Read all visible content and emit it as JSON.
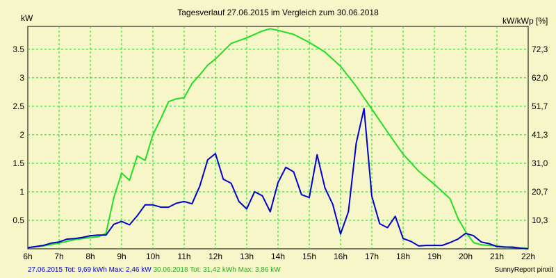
{
  "chart_data": {
    "type": "line",
    "title": "Tagesverlauf 27.06.2015 im Vergleich zum 30.06.2018",
    "ylabel_left": "kW",
    "ylabel_right": "kW/kWp [%]",
    "x_ticks": [
      "6h",
      "7h",
      "8h",
      "9h",
      "10h",
      "11h",
      "12h",
      "13h",
      "14h",
      "15h",
      "16h",
      "17h",
      "18h",
      "19h",
      "20h",
      "21h",
      "22h"
    ],
    "xlim": [
      6,
      22
    ],
    "ylim": [
      0,
      3.9
    ],
    "y_ticks": [
      "0.5",
      "1",
      "1.5",
      "2",
      "2.5",
      "3",
      "3.5"
    ],
    "y2_ticks": [
      "10,3",
      "20,7",
      "31,0",
      "41,3",
      "51,7",
      "62,0",
      "72,3"
    ],
    "grid": true,
    "series": [
      {
        "color": "#0000cc",
        "x": [
          6.0,
          6.25,
          6.5,
          6.75,
          7.0,
          7.25,
          7.5,
          7.75,
          8.0,
          8.25,
          8.5,
          8.75,
          9.0,
          9.25,
          9.5,
          9.75,
          10.0,
          10.25,
          10.5,
          10.75,
          11.0,
          11.25,
          11.5,
          11.75,
          12.0,
          12.25,
          12.5,
          12.75,
          13.0,
          13.25,
          13.5,
          13.75,
          14.0,
          14.25,
          14.5,
          14.75,
          15.0,
          15.25,
          15.5,
          15.75,
          16.0,
          16.25,
          16.5,
          16.75,
          17.0,
          17.25,
          17.5,
          17.75,
          18.0,
          18.25,
          18.5,
          18.75,
          19.0,
          19.25,
          19.5,
          19.75,
          20.0,
          20.25,
          20.5,
          20.75,
          21.0,
          21.25,
          21.5,
          21.75,
          22.0
        ],
        "values": [
          0.02,
          0.04,
          0.06,
          0.1,
          0.12,
          0.17,
          0.18,
          0.2,
          0.23,
          0.24,
          0.24,
          0.43,
          0.48,
          0.42,
          0.58,
          0.77,
          0.77,
          0.73,
          0.73,
          0.8,
          0.83,
          0.79,
          1.1,
          1.56,
          1.67,
          1.22,
          1.15,
          0.83,
          0.7,
          1.0,
          0.93,
          0.65,
          1.16,
          1.43,
          1.35,
          0.95,
          0.9,
          1.65,
          1.07,
          0.78,
          0.26,
          0.65,
          1.85,
          2.46,
          0.92,
          0.44,
          0.37,
          0.57,
          0.18,
          0.13,
          0.05,
          0.06,
          0.06,
          0.06,
          0.11,
          0.17,
          0.27,
          0.23,
          0.12,
          0.09,
          0.04,
          0.03,
          0.03,
          0.01,
          0.0
        ]
      },
      {
        "color": "#22dd22",
        "x": [
          6.0,
          6.5,
          7.0,
          7.5,
          8.0,
          8.25,
          8.5,
          8.75,
          9.0,
          9.25,
          9.5,
          9.75,
          10.0,
          10.25,
          10.5,
          10.75,
          11.0,
          11.25,
          11.5,
          11.75,
          12.0,
          12.5,
          13.0,
          13.5,
          13.75,
          14.0,
          14.5,
          15.0,
          15.5,
          16.0,
          16.5,
          17.0,
          17.5,
          18.0,
          18.5,
          19.0,
          19.5,
          19.75,
          20.0,
          20.25,
          20.5,
          20.75,
          21.0,
          21.5,
          22.0
        ],
        "values": [
          0.02,
          0.05,
          0.1,
          0.16,
          0.2,
          0.21,
          0.27,
          0.9,
          1.33,
          1.2,
          1.63,
          1.55,
          2.0,
          2.28,
          2.58,
          2.63,
          2.65,
          2.9,
          3.05,
          3.22,
          3.33,
          3.6,
          3.7,
          3.82,
          3.86,
          3.83,
          3.76,
          3.62,
          3.45,
          3.2,
          2.85,
          2.45,
          2.05,
          1.66,
          1.36,
          1.13,
          0.88,
          0.54,
          0.3,
          0.11,
          0.07,
          0.06,
          0.05,
          0.02,
          0.01
        ]
      }
    ]
  },
  "footer": {
    "label_1": "27.06.2015 Tot: 9,69 kWh Max: 2,46 kW",
    "label_2": "30.06.2018 Tot: 31,42 kWh Max: 3,86 kW",
    "credit": "SunnyReport pinxit"
  }
}
